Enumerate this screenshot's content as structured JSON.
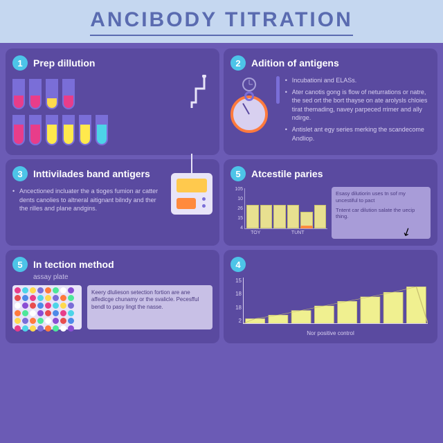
{
  "header": {
    "title": "AnciBody Titration",
    "title_color": "#5a6bb0",
    "bg_color": "#c5d7f0"
  },
  "theme": {
    "page_bg": "#6b5bb5",
    "panel_bg": "#5a4aa0",
    "badge_bg": "#4dc4e8",
    "text_light": "#d8d0f0"
  },
  "panels": {
    "prep": {
      "num": "1",
      "title": "Prep dillution",
      "tubes_row1": [
        {
          "fill": 0.45,
          "color": "#e83d8a"
        },
        {
          "fill": 0.45,
          "color": "#e83d8a"
        },
        {
          "fill": 0.35,
          "color": "#ffd94d"
        },
        {
          "fill": 0.45,
          "color": "#e83d8a"
        }
      ],
      "tubes_row2": [
        {
          "fill": 0.7,
          "color": "#e83d8a"
        },
        {
          "fill": 0.7,
          "color": "#e83d8a"
        },
        {
          "fill": 0.7,
          "color": "#ffe94d"
        },
        {
          "fill": 0.7,
          "color": "#ffe94d"
        },
        {
          "fill": 0.7,
          "color": "#ffe94d"
        },
        {
          "fill": 0.7,
          "color": "#4dd4e8"
        }
      ]
    },
    "antigens": {
      "num": "2",
      "title": "Adition of antigens",
      "bullets": [
        "Incubationi and ELASs.",
        "Ater canotis gong is flow of neturrations or natre, the sed ort the bort thayse on ate arolysls chloies tirat themading, navey parpeced rrimer and ally ndirge.",
        "Antislet ant egy series merking the scandecome Andliop."
      ],
      "clock_ring": "#ff7a3d",
      "clock_face": "#d8d0f0"
    },
    "band": {
      "num": "3",
      "title": "Inttivilades band antigers",
      "bullets": [
        "Ancectioned incluater the a tioges fumion ar catter dents canolies to altneral aitignant bilndy and ther the rilles and plane andgins."
      ],
      "device_body": "#e8e4f8",
      "device_screen": "#ffc94d",
      "device_btn": "#ff8a3d"
    },
    "paries": {
      "num": "5",
      "title": "Atcestile paries",
      "chart": {
        "type": "bar",
        "y_ticks": [
          "105",
          "10",
          "26",
          "15",
          "4"
        ],
        "x_ticks": [
          "TOY",
          "",
          "TUNT",
          ""
        ],
        "bars": [
          58,
          58,
          58,
          58,
          42,
          58
        ],
        "bar_color": "#e8e090",
        "highlight_index": 4,
        "highlight_color": "#ff8a3d"
      },
      "annotation": [
        "Esasy dilutiorin uses tn sof my uncestiful to pact",
        "Tntent car dilution salate the uecip thing."
      ]
    },
    "detection": {
      "num": "5",
      "title": "In tection method",
      "subtitle": "assay plate",
      "well_colors": [
        "#e83d8a",
        "#4dd4e8",
        "#ffd94d",
        "#7a6ed8",
        "#ff7a3d",
        "#4de89a",
        "#ffffff",
        "#8a4dd4",
        "#e84d4d",
        "#4d8ae8"
      ],
      "box_text": "Keery dlulieson setection fortion are ane affedicge chunamy or the svalicle. Pecesfful bendl to pasy lingt the nasse."
    },
    "curve": {
      "num": "4",
      "chart": {
        "type": "area-bar",
        "y_ticks": [
          "15",
          "18",
          "18",
          "2"
        ],
        "x_label": "Nor positive control",
        "bars": [
          10,
          18,
          28,
          38,
          48,
          58,
          68,
          80
        ],
        "area_color": "#f0f090",
        "axis_color": "#d8d0f0"
      }
    }
  }
}
